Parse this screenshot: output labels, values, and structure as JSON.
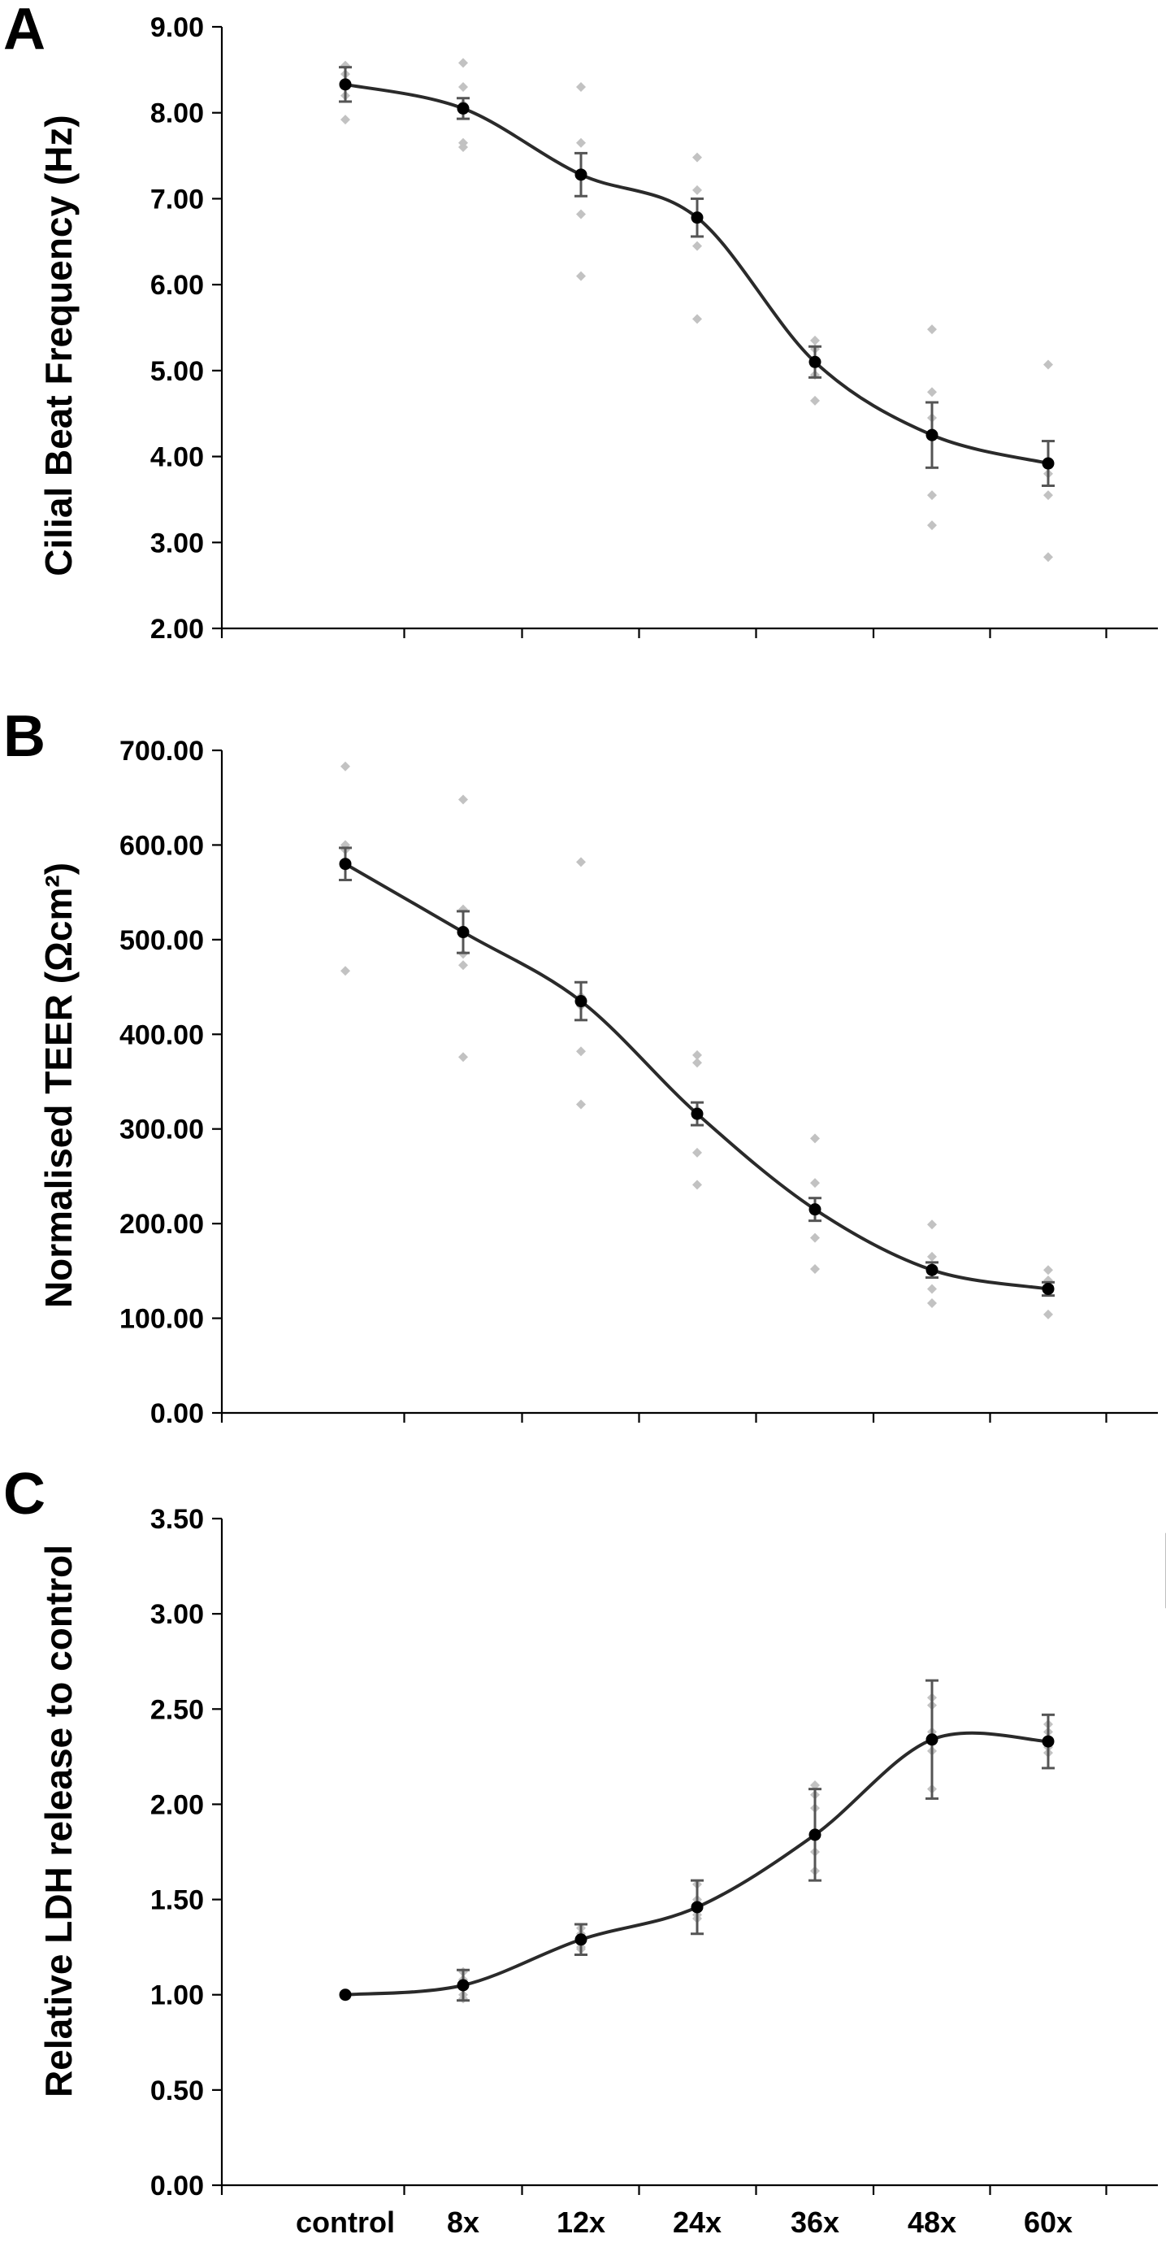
{
  "categories": [
    "control",
    "8x",
    "12x",
    "24x",
    "36x",
    "48x",
    "60x"
  ],
  "chart_data": [
    {
      "type": "line",
      "panel": "A",
      "xlabel": "",
      "ylabel": "Cilial Beat Frequency (Hz)",
      "ylim": [
        2.0,
        9.0
      ],
      "yticks": [
        "2.00",
        "3.00",
        "4.00",
        "5.00",
        "6.00",
        "7.00",
        "8.00",
        "9.00"
      ],
      "categories": [
        "control",
        "8x",
        "12x",
        "24x",
        "36x",
        "48x",
        "60x"
      ],
      "series": [
        {
          "values": [
            8.33,
            8.05,
            7.28,
            6.78,
            5.1,
            4.25,
            3.92
          ],
          "error": [
            0.2,
            0.12,
            0.25,
            0.22,
            0.18,
            0.38,
            0.26
          ]
        }
      ],
      "points": [
        [
          8.55,
          8.45,
          8.35,
          8.2,
          7.92
        ],
        [
          8.58,
          8.3,
          8.1,
          7.65,
          7.6
        ],
        [
          8.3,
          7.65,
          7.3,
          6.82,
          6.1
        ],
        [
          7.48,
          7.1,
          6.78,
          6.45,
          5.6
        ],
        [
          5.35,
          5.25,
          5.1,
          4.95,
          4.65
        ],
        [
          5.48,
          4.75,
          4.45,
          3.55,
          3.2
        ],
        [
          5.07,
          3.92,
          3.8,
          3.55,
          2.83
        ]
      ],
      "grid": false
    },
    {
      "type": "line",
      "panel": "B",
      "xlabel": "",
      "ylabel": "Normalised TEER (Ωcm²)",
      "ylim": [
        0,
        700
      ],
      "yticks": [
        "0.00",
        "100.00",
        "200.00",
        "300.00",
        "400.00",
        "500.00",
        "600.00",
        "700.00"
      ],
      "categories": [
        "control",
        "8x",
        "12x",
        "24x",
        "36x",
        "48x",
        "60x"
      ],
      "series": [
        {
          "values": [
            580,
            508,
            435,
            316,
            215,
            151,
            131
          ],
          "error": [
            17,
            22,
            20,
            12,
            12,
            8,
            7
          ]
        }
      ],
      "points": [
        [
          683,
          600,
          595,
          580,
          467
        ],
        [
          648,
          532,
          485,
          473,
          376
        ],
        [
          582,
          440,
          430,
          382,
          326
        ],
        [
          378,
          370,
          320,
          275,
          241
        ],
        [
          290,
          243,
          215,
          185,
          152
        ],
        [
          199,
          165,
          152,
          131,
          116
        ],
        [
          151,
          140,
          133,
          128,
          104
        ]
      ],
      "grid": false
    },
    {
      "type": "line",
      "panel": "C",
      "xlabel": "",
      "ylabel": "Relative LDH release to control",
      "ylim": [
        0,
        3.5
      ],
      "yticks": [
        "0.00",
        "0.50",
        "1.00",
        "1.50",
        "2.00",
        "2.50",
        "3.00",
        "3.50"
      ],
      "categories": [
        "control",
        "8x",
        "12x",
        "24x",
        "36x",
        "48x",
        "60x"
      ],
      "series": [
        {
          "values": [
            1.0,
            1.05,
            1.29,
            1.46,
            1.84,
            2.34,
            2.33
          ],
          "error": [
            0.0,
            0.08,
            0.08,
            0.14,
            0.24,
            0.31,
            0.14
          ]
        }
      ],
      "points": [
        [
          1.0,
          1.0,
          1.0,
          1.0,
          1.0
        ],
        [
          1.12,
          1.08,
          1.05,
          1.0,
          0.98
        ],
        [
          1.35,
          1.32,
          1.28,
          1.25,
          1.24
        ],
        [
          1.58,
          1.5,
          1.45,
          1.42,
          1.4
        ],
        [
          2.1,
          2.05,
          1.98,
          1.75,
          1.65
        ],
        [
          2.56,
          2.52,
          2.38,
          2.28,
          2.08
        ],
        [
          2.42,
          2.38,
          2.33,
          2.3,
          2.27
        ]
      ],
      "legend": "top-right",
      "grid": false
    }
  ]
}
